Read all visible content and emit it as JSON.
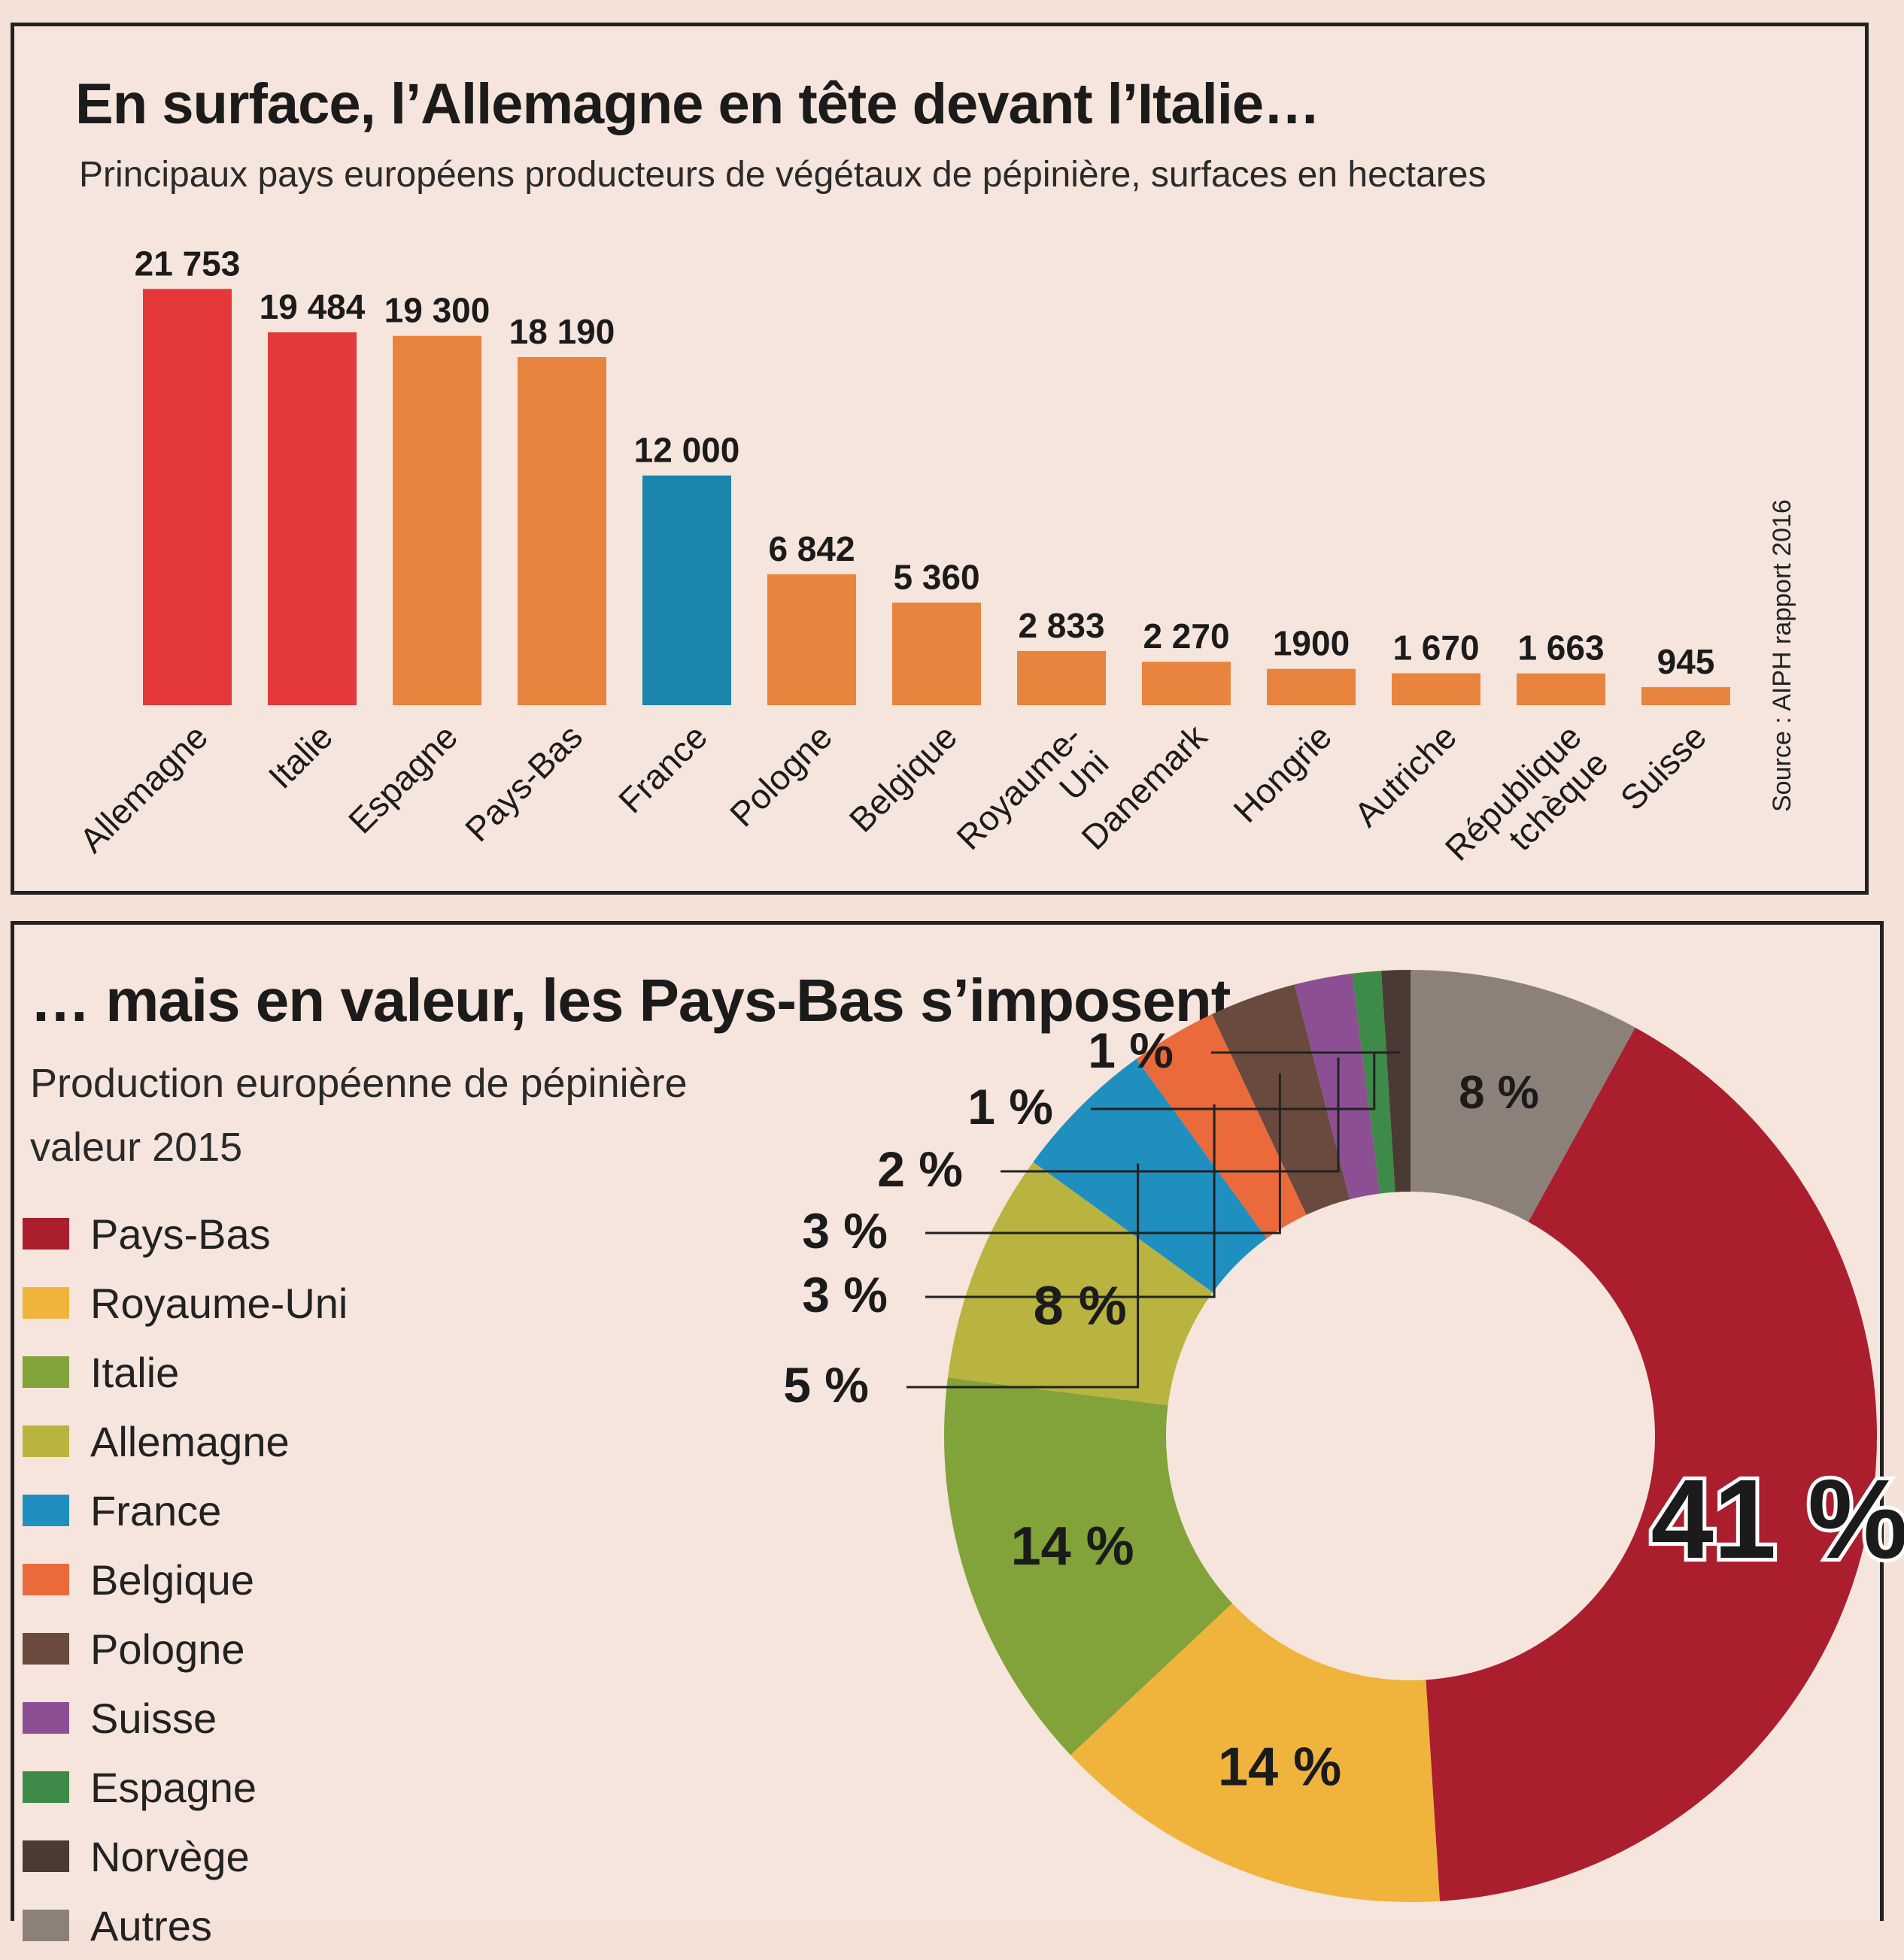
{
  "chart_data": [
    {
      "type": "bar",
      "title": "En surface, l’Allemagne en tête devant l’Italie…",
      "subtitle": "Principaux pays européens producteurs de végétaux de pépinière, surfaces en hectares",
      "source": "Source : AIPH rapport 2016",
      "categories": [
        "Allemagne",
        "Italie",
        "Espagne",
        "Pays-Bas",
        "France",
        "Pologne",
        "Belgique",
        "Royaume-Uni",
        "Danemark",
        "Hongrie",
        "Autriche",
        "République tchèque",
        "Suisse"
      ],
      "category_lines": [
        [
          "Allemagne"
        ],
        [
          "Italie"
        ],
        [
          "Espagne"
        ],
        [
          "Pays-Bas"
        ],
        [
          "France"
        ],
        [
          "Pologne"
        ],
        [
          "Belgique"
        ],
        [
          "Royaume-",
          "Uni"
        ],
        [
          "Danemark"
        ],
        [
          "Hongrie"
        ],
        [
          "Autriche"
        ],
        [
          "République",
          "tchèque"
        ],
        [
          "Suisse"
        ]
      ],
      "values": [
        21753,
        19484,
        19300,
        18190,
        12000,
        6842,
        5360,
        2833,
        2270,
        1900,
        1670,
        1663,
        945
      ],
      "value_labels": [
        "21 753",
        "19 484",
        "19 300",
        "18 190",
        "12 000",
        "6 842",
        "5 360",
        "2 833",
        "2 270",
        "1900",
        "1 670",
        "1 663",
        "945"
      ],
      "colors": [
        "#e5383b",
        "#e5383b",
        "#e8843e",
        "#e8843e",
        "#1a86ad",
        "#e8843e",
        "#e8843e",
        "#e8843e",
        "#e8843e",
        "#e8843e",
        "#e8843e",
        "#e8843e",
        "#e8843e"
      ],
      "ylim": [
        0,
        22000
      ],
      "grid": false
    },
    {
      "type": "pie",
      "title": "… mais en valeur, les Pays-Bas s’imposent",
      "subtitle_lines": [
        "Production européenne de pépinière",
        "valeur 2015"
      ],
      "labels": [
        "Pays-Bas",
        "Royaume-Uni",
        "Italie",
        "Allemagne",
        "France",
        "Belgique",
        "Pologne",
        "Suisse",
        "Espagne",
        "Norvège",
        "Autres"
      ],
      "values": [
        41,
        14,
        14,
        8,
        5,
        3,
        3,
        2,
        1,
        1,
        8
      ],
      "value_labels": [
        "41 %",
        "14 %",
        "14 %",
        "8 %",
        "5 %",
        "3 %",
        "3 %",
        "2 %",
        "1 %",
        "1 %",
        "8 %"
      ],
      "colors": [
        "#ab1e2e",
        "#f0b43c",
        "#82a23a",
        "#b9b340",
        "#1f8fc0",
        "#ea6a3c",
        "#6a4a3e",
        "#8c4f93",
        "#3e8a48",
        "#4a3a34",
        "#8c8179"
      ],
      "legend": "left"
    }
  ]
}
